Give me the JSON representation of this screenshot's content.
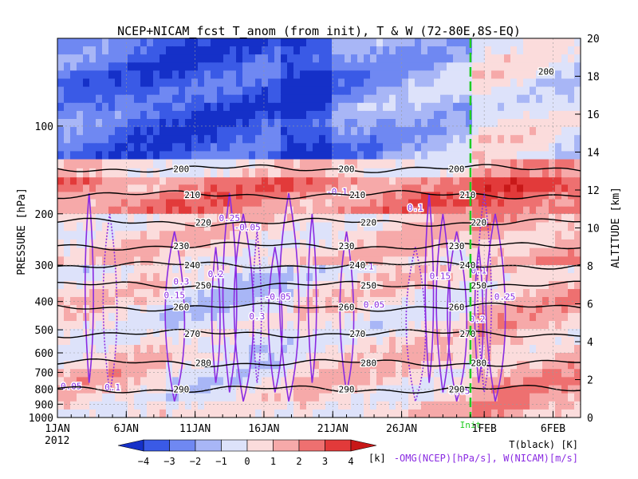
{
  "chart_data": {
    "type": "heatmap",
    "title": "NCEP+NICAM_fcst T_anom (from init), T & W  (72-80E,8S-EQ)",
    "ylabel_left": "PRESSURE [hPa]",
    "ylabel_right": "ALTITUDE [km]",
    "x_ticks": [
      {
        "label": "1JAN",
        "day": 1
      },
      {
        "label": "6JAN",
        "day": 6
      },
      {
        "label": "11JAN",
        "day": 11
      },
      {
        "label": "16JAN",
        "day": 16
      },
      {
        "label": "21JAN",
        "day": 21
      },
      {
        "label": "26JAN",
        "day": 26
      },
      {
        "label": "1FEB",
        "day": 32
      },
      {
        "label": "6FEB",
        "day": 37
      }
    ],
    "x_sublabel": "2012",
    "xlim_days": [
      1,
      39
    ],
    "y_ticks_pressure": [
      100,
      200,
      300,
      400,
      500,
      600,
      700,
      800,
      900,
      1000
    ],
    "ylim_pressure": [
      1000,
      50
    ],
    "y_ticks_altitude": [
      0,
      2,
      4,
      6,
      8,
      10,
      12,
      14,
      16,
      18,
      20
    ],
    "ylim_altitude": [
      0,
      20
    ],
    "init_marker": {
      "label": "Init",
      "day": 31,
      "color": "#22cc22"
    },
    "colorbar": {
      "ticks": [
        -4,
        -3,
        -2,
        -1,
        0,
        1,
        2,
        3,
        4
      ],
      "unit": "[k]",
      "colors": [
        "#1530c8",
        "#3a5ae6",
        "#6f88f2",
        "#a8b6f6",
        "#dde2fa",
        "#fbdcdc",
        "#f6a9a9",
        "#ee7070",
        "#e23a3a",
        "#c81818"
      ]
    },
    "temperature_contours_K": [
      {
        "level": 200,
        "pressure_hPa": 140
      },
      {
        "level": 210,
        "pressure_hPa": 172
      },
      {
        "level": 220,
        "pressure_hPa": 214
      },
      {
        "level": 230,
        "pressure_hPa": 258
      },
      {
        "level": 240,
        "pressure_hPa": 300
      },
      {
        "level": 250,
        "pressure_hPa": 352
      },
      {
        "level": 260,
        "pressure_hPa": 418
      },
      {
        "level": 270,
        "pressure_hPa": 515
      },
      {
        "level": 280,
        "pressure_hPa": 650
      },
      {
        "level": 290,
        "pressure_hPa": 800
      }
    ],
    "temperature_contour_labels": [
      "200",
      "210",
      "220",
      "230",
      "240",
      "250",
      "260",
      "270",
      "280",
      "290",
      "200"
    ],
    "w_contour_labels": [
      "0.05",
      "0.1",
      "0.15",
      "0.2",
      "0.25",
      "0.3",
      "-0.05",
      "-0.1"
    ],
    "legend": {
      "line1": "T(black) [K]",
      "line2": "-OMG(NCEP)[hPa/s], W(NICAM)[m/s]"
    },
    "temperature_anomaly_bands": [
      {
        "pressure_range_hPa": [
          50,
          130
        ],
        "approx_K": -2.5
      },
      {
        "pressure_range_hPa": [
          130,
          150
        ],
        "approx_K": 0.5
      },
      {
        "pressure_range_hPa": [
          150,
          200
        ],
        "approx_K": 2.2
      },
      {
        "pressure_range_hPa": [
          200,
          300
        ],
        "approx_K": 0.6
      },
      {
        "pressure_range_hPa": [
          300,
          600
        ],
        "approx_K": 0.3
      },
      {
        "pressure_range_hPa": [
          600,
          1000
        ],
        "approx_K": 0.7
      }
    ]
  }
}
